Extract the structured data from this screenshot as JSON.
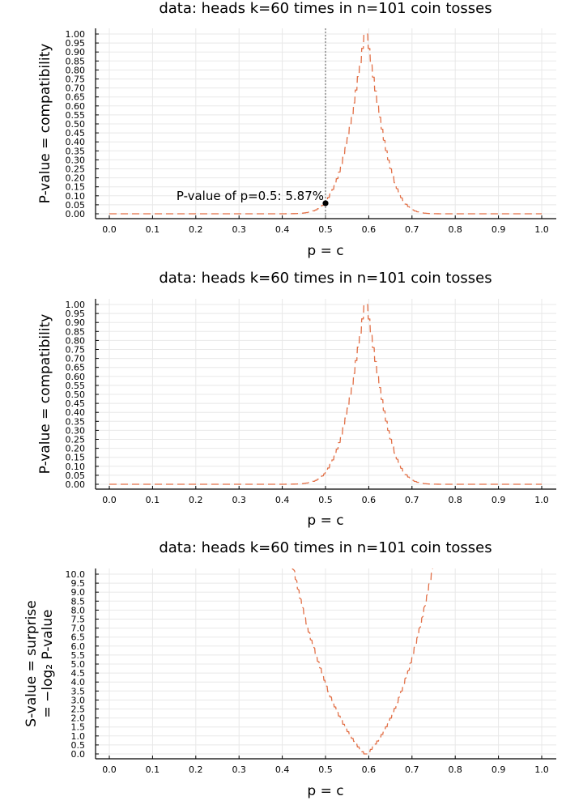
{
  "colors": {
    "curve": "#e26f46",
    "grid": "#e8e8e8",
    "axis": "#000000",
    "marker": "#000000"
  },
  "chart_data": [
    {
      "type": "line",
      "title": "data: heads k=60 times in n=101 coin tosses",
      "xlabel": "p = c",
      "ylabel": "P-value = compatibility",
      "ylabel_lines": [
        "P-value = compatibility"
      ],
      "xlim": [
        0,
        1
      ],
      "ylim": [
        0,
        1
      ],
      "xticks": [
        "0.0",
        "0.1",
        "0.2",
        "0.3",
        "0.4",
        "0.5",
        "0.6",
        "0.7",
        "0.8",
        "0.9",
        "1.0"
      ],
      "yticks": [
        "0.00",
        "0.05",
        "0.10",
        "0.15",
        "0.20",
        "0.25",
        "0.30",
        "0.35",
        "0.40",
        "0.45",
        "0.50",
        "0.55",
        "0.60",
        "0.65",
        "0.70",
        "0.75",
        "0.80",
        "0.85",
        "0.90",
        "0.95",
        "1.00"
      ],
      "grid": true,
      "series": [
        {
          "metric": "pvalue",
          "k": 60,
          "n": 101
        }
      ],
      "vline": 0.5,
      "marker": {
        "x": 0.5,
        "y": 0.0587
      },
      "annotation": "P-value of p=0.5: 5.87%"
    },
    {
      "type": "line",
      "title": "data: heads k=60 times in n=101 coin tosses",
      "xlabel": "p = c",
      "ylabel": "P-value = compatibility",
      "ylabel_lines": [
        "P-value = compatibility"
      ],
      "xlim": [
        0,
        1
      ],
      "ylim": [
        0,
        1
      ],
      "xticks": [
        "0.0",
        "0.1",
        "0.2",
        "0.3",
        "0.4",
        "0.5",
        "0.6",
        "0.7",
        "0.8",
        "0.9",
        "1.0"
      ],
      "yticks": [
        "0.00",
        "0.05",
        "0.10",
        "0.15",
        "0.20",
        "0.25",
        "0.30",
        "0.35",
        "0.40",
        "0.45",
        "0.50",
        "0.55",
        "0.60",
        "0.65",
        "0.70",
        "0.75",
        "0.80",
        "0.85",
        "0.90",
        "0.95",
        "1.00"
      ],
      "grid": true,
      "series": [
        {
          "metric": "pvalue",
          "k": 60,
          "n": 101
        }
      ]
    },
    {
      "type": "line",
      "title": "data: heads k=60 times in n=101 coin tosses",
      "xlabel": "p = c",
      "ylabel": "S-value = surprise = −log₂ P-value",
      "ylabel_lines": [
        "S-value = surprise",
        "= −log₂ P-value"
      ],
      "xlim": [
        0,
        1
      ],
      "ylim": [
        0,
        10
      ],
      "xticks": [
        "0.0",
        "0.1",
        "0.2",
        "0.3",
        "0.4",
        "0.5",
        "0.6",
        "0.7",
        "0.8",
        "0.9",
        "1.0"
      ],
      "yticks": [
        "0.0",
        "0.5",
        "1.0",
        "1.5",
        "2.0",
        "2.5",
        "3.0",
        "3.5",
        "4.0",
        "4.5",
        "5.0",
        "5.5",
        "6.0",
        "6.5",
        "7.0",
        "7.5",
        "8.0",
        "8.5",
        "9.0",
        "9.5",
        "10.0"
      ],
      "grid": true,
      "series": [
        {
          "metric": "svalue",
          "k": 60,
          "n": 101
        }
      ]
    }
  ]
}
